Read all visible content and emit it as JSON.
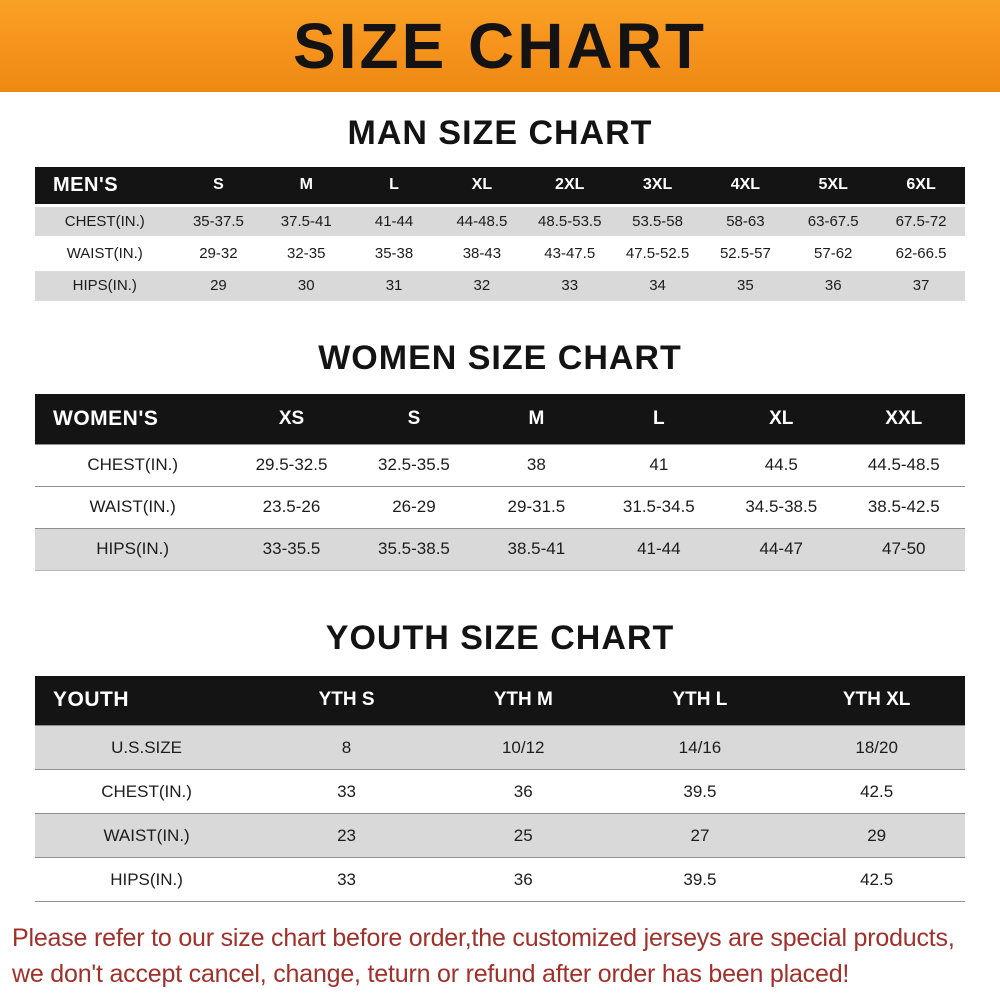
{
  "banner": {
    "title": "SIZE CHART"
  },
  "colors": {
    "banner_bg": "#f7941e",
    "header_bg": "#141414",
    "row_gray": "#d9d9d9",
    "footer_text": "#a0302a"
  },
  "chart_data": [
    {
      "type": "table",
      "title": "MAN SIZE CHART",
      "header": [
        "MEN'S",
        "S",
        "M",
        "L",
        "XL",
        "2XL",
        "3XL",
        "4XL",
        "5XL",
        "6XL"
      ],
      "rows": [
        [
          "CHEST(IN.)",
          "35-37.5",
          "37.5-41",
          "41-44",
          "44-48.5",
          "48.5-53.5",
          "53.5-58",
          "58-63",
          "63-67.5",
          "67.5-72"
        ],
        [
          "WAIST(IN.)",
          "29-32",
          "32-35",
          "35-38",
          "38-43",
          "43-47.5",
          "47.5-52.5",
          "52.5-57",
          "57-62",
          "62-66.5"
        ],
        [
          "HIPS(IN.)",
          "29",
          "30",
          "31",
          "32",
          "33",
          "34",
          "35",
          "36",
          "37"
        ]
      ],
      "gray_rows": [
        0,
        2
      ]
    },
    {
      "type": "table",
      "title": "WOMEN SIZE CHART",
      "header": [
        "WOMEN'S",
        "XS",
        "S",
        "M",
        "L",
        "XL",
        "XXL"
      ],
      "rows": [
        [
          "CHEST(IN.)",
          "29.5-32.5",
          "32.5-35.5",
          "38",
          "41",
          "44.5",
          "44.5-48.5"
        ],
        [
          "WAIST(IN.)",
          "23.5-26",
          "26-29",
          "29-31.5",
          "31.5-34.5",
          "34.5-38.5",
          "38.5-42.5"
        ],
        [
          "HIPS(IN.)",
          "33-35.5",
          "35.5-38.5",
          "38.5-41",
          "41-44",
          "44-47",
          "47-50"
        ]
      ],
      "gray_rows": [
        2
      ]
    },
    {
      "type": "table",
      "title": "YOUTH SIZE CHART",
      "header": [
        "YOUTH",
        "YTH S",
        "YTH M",
        "YTH L",
        "YTH XL"
      ],
      "rows": [
        [
          "U.S.SIZE",
          "8",
          "10/12",
          "14/16",
          "18/20"
        ],
        [
          "CHEST(IN.)",
          "33",
          "36",
          "39.5",
          "42.5"
        ],
        [
          "WAIST(IN.)",
          "23",
          "25",
          "27",
          "29"
        ],
        [
          "HIPS(IN.)",
          "33",
          "36",
          "39.5",
          "42.5"
        ]
      ],
      "gray_rows": [
        0,
        2
      ]
    }
  ],
  "footer": {
    "line1": "Please refer to our size chart before order,the customized jerseys are special products,",
    "line2": "we don't accept cancel, change, teturn or refund after order has been placed!"
  }
}
